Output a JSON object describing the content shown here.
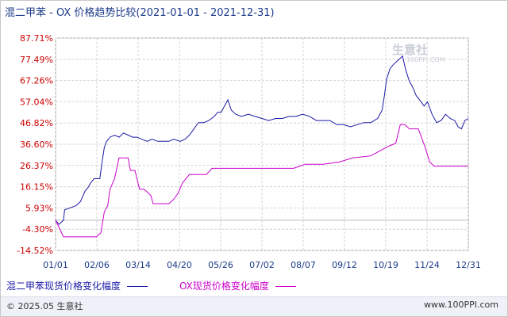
{
  "chart_data": {
    "type": "line",
    "title": "混二甲苯 - OX 价格趋势比较(2021-01-01 - 2021-12-31)",
    "y_ticks": [
      "87.71%",
      "77.49%",
      "67.26%",
      "57.04%",
      "46.82%",
      "36.60%",
      "26.37%",
      "16.15%",
      "5.93%",
      "-4.30%",
      "-14.52%"
    ],
    "ylim": [
      -14.52,
      87.71
    ],
    "x_ticks": [
      "01/01",
      "02/06",
      "03/14",
      "04/20",
      "05/26",
      "07/02",
      "08/07",
      "09/12",
      "10/19",
      "11/24",
      "12/31"
    ],
    "xlim": [
      0,
      364
    ],
    "grid": true,
    "series": [
      {
        "name": "混二甲苯现货价格变化幅度",
        "color": "#1a1aa6",
        "points": [
          [
            0,
            0
          ],
          [
            3,
            -2
          ],
          [
            5,
            -1
          ],
          [
            7,
            0
          ],
          [
            8,
            5
          ],
          [
            13,
            6
          ],
          [
            18,
            7
          ],
          [
            22,
            9
          ],
          [
            26,
            14
          ],
          [
            29,
            16
          ],
          [
            31,
            18
          ],
          [
            34,
            20
          ],
          [
            39,
            20
          ],
          [
            41,
            28
          ],
          [
            43,
            35
          ],
          [
            45,
            38
          ],
          [
            48,
            40
          ],
          [
            52,
            41
          ],
          [
            56,
            40
          ],
          [
            60,
            42
          ],
          [
            64,
            41
          ],
          [
            68,
            40
          ],
          [
            72,
            40
          ],
          [
            76,
            39
          ],
          [
            81,
            38
          ],
          [
            85,
            39
          ],
          [
            90,
            38
          ],
          [
            95,
            38
          ],
          [
            100,
            38
          ],
          [
            104,
            39
          ],
          [
            110,
            38
          ],
          [
            114,
            39
          ],
          [
            118,
            41
          ],
          [
            122,
            44
          ],
          [
            126,
            47
          ],
          [
            131,
            47
          ],
          [
            135,
            48
          ],
          [
            140,
            50
          ],
          [
            143,
            52
          ],
          [
            146,
            52
          ],
          [
            150,
            56
          ],
          [
            152,
            58
          ],
          [
            155,
            53
          ],
          [
            159,
            51
          ],
          [
            164,
            50
          ],
          [
            170,
            51
          ],
          [
            176,
            50
          ],
          [
            182,
            49
          ],
          [
            188,
            48
          ],
          [
            194,
            49
          ],
          [
            200,
            49
          ],
          [
            206,
            50
          ],
          [
            212,
            50
          ],
          [
            218,
            51
          ],
          [
            224,
            50
          ],
          [
            230,
            48
          ],
          [
            236,
            48
          ],
          [
            242,
            48
          ],
          [
            248,
            46
          ],
          [
            254,
            46
          ],
          [
            260,
            45
          ],
          [
            266,
            46
          ],
          [
            272,
            47
          ],
          [
            278,
            47
          ],
          [
            284,
            49
          ],
          [
            288,
            53
          ],
          [
            290,
            60
          ],
          [
            292,
            68
          ],
          [
            295,
            73
          ],
          [
            298,
            75
          ],
          [
            302,
            77
          ],
          [
            306,
            79
          ],
          [
            309,
            72
          ],
          [
            312,
            67
          ],
          [
            315,
            64
          ],
          [
            318,
            60
          ],
          [
            321,
            58
          ],
          [
            325,
            55
          ],
          [
            328,
            57
          ],
          [
            332,
            51
          ],
          [
            336,
            47
          ],
          [
            340,
            48
          ],
          [
            344,
            51
          ],
          [
            348,
            49
          ],
          [
            352,
            48
          ],
          [
            355,
            45
          ],
          [
            358,
            44
          ],
          [
            361,
            48
          ],
          [
            364,
            49
          ]
        ]
      },
      {
        "name": "OX现货价格变化幅度",
        "color": "#cc00cc",
        "points": [
          [
            0,
            0
          ],
          [
            7,
            -8
          ],
          [
            36,
            -8
          ],
          [
            40,
            -6
          ],
          [
            43,
            4
          ],
          [
            46,
            7
          ],
          [
            48,
            15
          ],
          [
            52,
            20
          ],
          [
            56,
            30
          ],
          [
            60,
            30
          ],
          [
            64,
            30
          ],
          [
            66,
            24
          ],
          [
            70,
            24
          ],
          [
            74,
            15
          ],
          [
            78,
            15
          ],
          [
            84,
            12
          ],
          [
            86,
            8
          ],
          [
            91,
            8
          ],
          [
            96,
            8
          ],
          [
            100,
            8
          ],
          [
            104,
            10
          ],
          [
            108,
            13
          ],
          [
            112,
            18
          ],
          [
            118,
            22
          ],
          [
            126,
            22
          ],
          [
            133,
            22
          ],
          [
            138,
            25
          ],
          [
            150,
            25
          ],
          [
            170,
            25
          ],
          [
            190,
            25
          ],
          [
            210,
            25
          ],
          [
            220,
            27
          ],
          [
            236,
            27
          ],
          [
            250,
            28
          ],
          [
            262,
            30
          ],
          [
            278,
            31
          ],
          [
            288,
            34
          ],
          [
            295,
            36
          ],
          [
            300,
            37
          ],
          [
            304,
            46
          ],
          [
            308,
            46
          ],
          [
            312,
            44
          ],
          [
            320,
            44
          ],
          [
            326,
            35
          ],
          [
            330,
            28
          ],
          [
            334,
            26
          ],
          [
            342,
            26
          ],
          [
            354,
            26
          ],
          [
            364,
            26
          ]
        ]
      }
    ]
  },
  "watermark": {
    "logo": "生意社",
    "url": "100PPI.COM"
  },
  "footer": {
    "left": "© 2025.05 生意社",
    "right": "www.100PPI.com"
  }
}
